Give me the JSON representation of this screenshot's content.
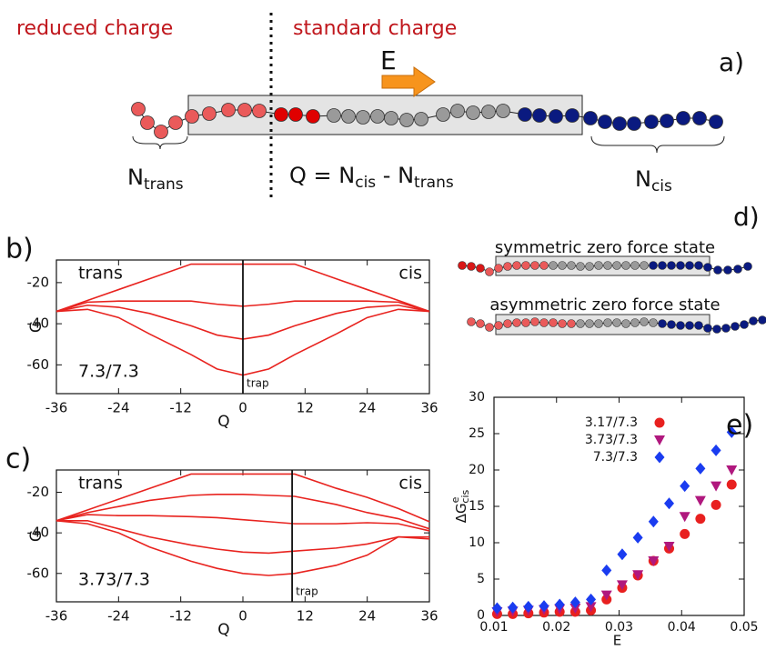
{
  "panel_a": {
    "panel": "a)",
    "left_label": "reduced charge",
    "right_label": "standard charge",
    "field": "E",
    "n_trans": {
      "text": "N",
      "sub": "trans"
    },
    "equation": [
      {
        "text": "Q = N",
        "sub": "cis"
      },
      {
        "text": " - N",
        "sub": "trans"
      }
    ],
    "n_cis": {
      "text": "N",
      "sub": "cis"
    }
  },
  "panel_d": {
    "panel": "d)",
    "symmetric": "symmetric zero force state",
    "asymmetric": "asymmetric zero force state"
  },
  "chart_data": [
    {
      "type": "line",
      "panel": "b)",
      "xlabel": "Q",
      "ylabel": "G",
      "left_label": "trans",
      "right_label": "cis",
      "case_label": "7.3/7.3",
      "marker": {
        "x": 0,
        "label": "trap"
      },
      "x": [
        -36,
        -30,
        -24,
        -18,
        -10,
        -5,
        0,
        5,
        10,
        18,
        24,
        30,
        36
      ],
      "series": [
        {
          "color": "#e8231f",
          "values": [
            -34,
            -28.7,
            -23.4,
            -18.1,
            -11,
            -11,
            -11,
            -11,
            -11,
            -18.1,
            -23.4,
            -28.7,
            -34
          ]
        },
        {
          "color": "#e8231f",
          "values": [
            -34,
            -29.5,
            -29,
            -29,
            -29,
            -30.5,
            -31.5,
            -30.5,
            -29,
            -29,
            -29,
            -29.5,
            -34
          ]
        },
        {
          "color": "#e8231f",
          "values": [
            -34,
            -31,
            -32,
            -35,
            -41,
            -45.5,
            -47.5,
            -45.5,
            -41,
            -35,
            -32,
            -31,
            -34
          ]
        },
        {
          "color": "#e8231f",
          "values": [
            -34,
            -33,
            -37,
            -45,
            -55,
            -62,
            -65,
            -62,
            -55,
            -45,
            -37,
            -33,
            -34
          ]
        }
      ],
      "xlim": [
        -36,
        36
      ],
      "ylim": [
        -74,
        -9
      ],
      "xticks": [
        -36,
        -24,
        -12,
        0,
        12,
        24,
        36
      ],
      "yticks": [
        -20,
        -40,
        -60
      ],
      "grid": false
    },
    {
      "type": "line",
      "panel": "c)",
      "xlabel": "Q",
      "ylabel": "G",
      "left_label": "trans",
      "right_label": "cis",
      "case_label": "3.73/7.3",
      "marker": {
        "x": 9.5,
        "label": "trap"
      },
      "x": [
        -36,
        -30,
        -24,
        -18,
        -10,
        -5,
        0,
        5,
        10,
        18,
        24,
        30,
        36
      ],
      "series": [
        {
          "color": "#e8231f",
          "values": [
            -34,
            -28.7,
            -23.4,
            -18.1,
            -11,
            -11,
            -11,
            -11,
            -11,
            -18,
            -22.5,
            -28,
            -34.5
          ]
        },
        {
          "color": "#e8231f",
          "values": [
            -34,
            -30,
            -27,
            -24,
            -21.5,
            -21,
            -21,
            -21.5,
            -22,
            -26,
            -30,
            -33,
            -38
          ]
        },
        {
          "color": "#e8231f",
          "values": [
            -34,
            -31,
            -31.5,
            -31.5,
            -32,
            -32.5,
            -33.5,
            -34.5,
            -35.5,
            -35.5,
            -35,
            -35.5,
            -39
          ]
        },
        {
          "color": "#e8231f",
          "values": [
            -34,
            -34,
            -38,
            -42,
            -46,
            -48,
            -49.5,
            -50,
            -49,
            -47.5,
            -45.5,
            -42,
            -43
          ]
        },
        {
          "color": "#e8231f",
          "values": [
            -34,
            -35.5,
            -40,
            -47,
            -54,
            -57.5,
            -60,
            -61,
            -60,
            -56,
            -51,
            -42,
            -42
          ]
        }
      ],
      "xlim": [
        -36,
        36
      ],
      "ylim": [
        -74,
        -9
      ],
      "xticks": [
        -36,
        -24,
        -12,
        0,
        12,
        24,
        36
      ],
      "yticks": [
        -20,
        -40,
        -60
      ],
      "grid": false
    },
    {
      "type": "scatter",
      "panel": "e)",
      "xlabel": "E",
      "ylabel": {
        "text": "ΔG",
        "sup": "e",
        "sub": "cis"
      },
      "x": [
        0.0105,
        0.013,
        0.0155,
        0.018,
        0.0205,
        0.023,
        0.0255,
        0.028,
        0.0305,
        0.033,
        0.0355,
        0.038,
        0.0405,
        0.043,
        0.0455,
        0.048
      ],
      "series": [
        {
          "name": "3.17/7.3",
          "color": "#e8201f",
          "marker": "circle",
          "values": [
            0.2,
            0.2,
            0.3,
            0.4,
            0.5,
            0.5,
            0.7,
            2.2,
            3.8,
            5.5,
            7.5,
            9.2,
            11.2,
            13.3,
            15.2,
            18
          ]
        },
        {
          "name": "3.73/7.3",
          "color": "#b0187e",
          "marker": "triangle-down",
          "values": [
            0.5,
            0.6,
            0.7,
            0.8,
            0.9,
            1.0,
            1.2,
            2.8,
            4.2,
            5.6,
            7.5,
            9.5,
            13.6,
            15.8,
            17.8,
            20
          ]
        },
        {
          "name": "7.3/7.3",
          "color": "#1a3cf0",
          "marker": "diamond",
          "values": [
            1.0,
            1.1,
            1.2,
            1.3,
            1.5,
            1.8,
            2.2,
            6.2,
            8.4,
            10.7,
            12.9,
            15.4,
            17.8,
            20.2,
            22.7,
            25.2
          ]
        }
      ],
      "xlim": [
        0.01,
        0.05
      ],
      "ylim": [
        0,
        30
      ],
      "xticks": [
        0.01,
        0.02,
        0.03,
        0.04,
        0.05
      ],
      "yticks": [
        0,
        5,
        10,
        15,
        20,
        25,
        30
      ],
      "grid": false,
      "legend": "upper-left"
    }
  ]
}
